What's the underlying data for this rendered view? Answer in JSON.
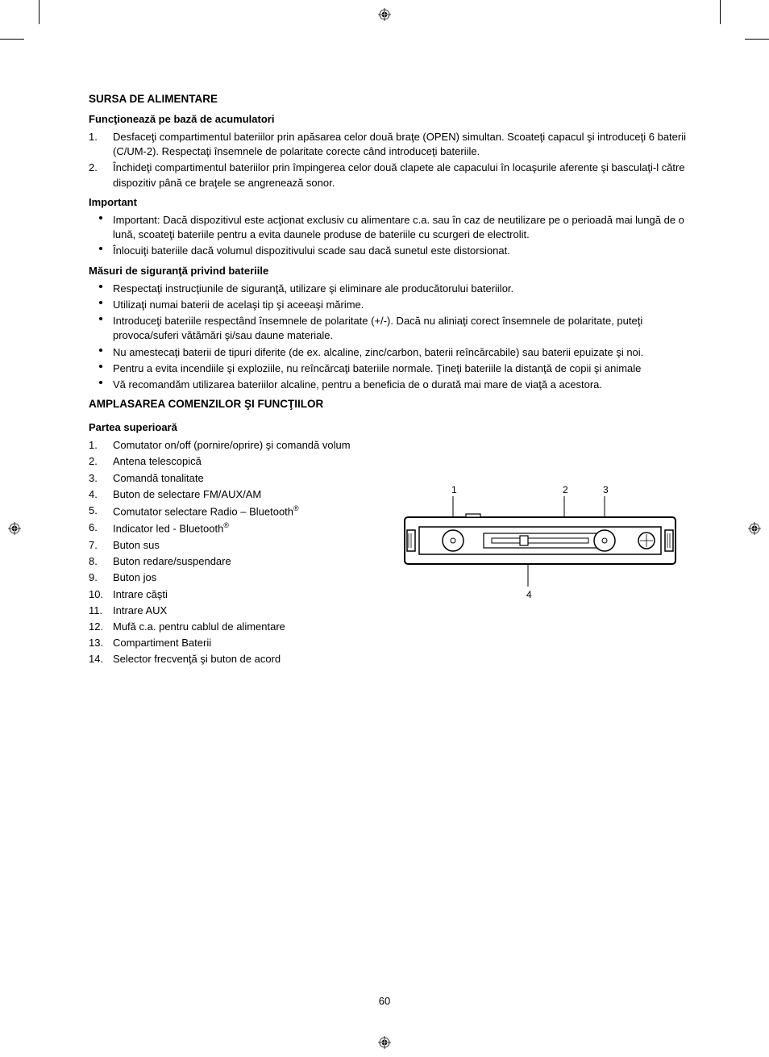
{
  "page_number": "60",
  "section1": {
    "heading": "SURSA DE ALIMENTARE",
    "sub1": {
      "heading": "Funcţionează pe bază de acumulatori",
      "items": [
        "Desfaceţi compartimentul bateriilor prin apăsarea celor două braţe (OPEN) simultan. Scoateţi capacul şi introduceţi 6 baterii (C/UM-2). Respectaţi însemnele de polaritate corecte când introduceţi bateriile.",
        "Închideţi compartimentul bateriilor prin împingerea celor două clapete ale capacului în locaşurile aferente şi basculaţi-l către dispozitiv până ce braţele se angrenează sonor."
      ]
    },
    "sub2": {
      "heading": "Important",
      "items": [
        "Important: Dacă dispozitivul este acţionat exclusiv cu alimentare c.a. sau în caz de neutilizare pe o perioadă mai lungă de o lună, scoateţi bateriile pentru a evita daunele produse de bateriile cu scurgeri de electrolit.",
        "Înlocuiţi bateriile dacă volumul dispozitivului scade sau dacă sunetul este distorsionat."
      ]
    },
    "sub3": {
      "heading": "Măsuri de siguranţă privind bateriile",
      "items": [
        "Respectaţi instrucţiunile de siguranţă, utilizare şi eliminare ale producătorului bateriilor.",
        "Utilizaţi numai baterii de acelaşi tip şi aceeaşi mărime.",
        "Introduceţi bateriile respectând însemnele de polaritate (+/-). Dacă nu aliniaţi corect însemnele de polaritate, puteţi provoca/suferi vătămări şi/sau daune materiale.",
        "Nu amestecaţi baterii de tipuri diferite (de ex. alcaline, zinc/carbon, baterii reîncărcabile) sau baterii epuizate şi noi.",
        "Pentru a evita incendiile şi exploziile, nu reîncărcaţi bateriile normale. Ţineţi bateriile la distanţă de copii şi animale",
        "Vă recomandăm utilizarea bateriilor alcaline, pentru a beneficia de o durată mai mare de viaţă a acestora."
      ]
    }
  },
  "section2": {
    "heading": "AMPLASAREA COMENZILOR ŞI FUNCŢIILOR",
    "sub1": {
      "heading": "Partea superioară",
      "items": [
        "Comutator on/off (pornire/oprire) şi comandă volum",
        "Antena telescopică",
        "Comandă tonalitate",
        "Buton de selectare FM/AUX/AM",
        "Comutator selectare Radio – Bluetooth",
        "Indicator led - Bluetooth",
        "Buton sus",
        "Buton redare/suspendare",
        "Buton jos",
        "Intrare căşti",
        "Intrare AUX",
        "Mufă c.a. pentru cablul de alimentare",
        "Compartiment Baterii",
        "Selector frecvenţă şi buton de acord"
      ],
      "sup_indices": [
        5,
        6
      ]
    }
  },
  "diagram": {
    "labels": [
      "1",
      "2",
      "3",
      "4"
    ],
    "colors": {
      "stroke": "#000000",
      "fill_white": "#ffffff"
    }
  }
}
